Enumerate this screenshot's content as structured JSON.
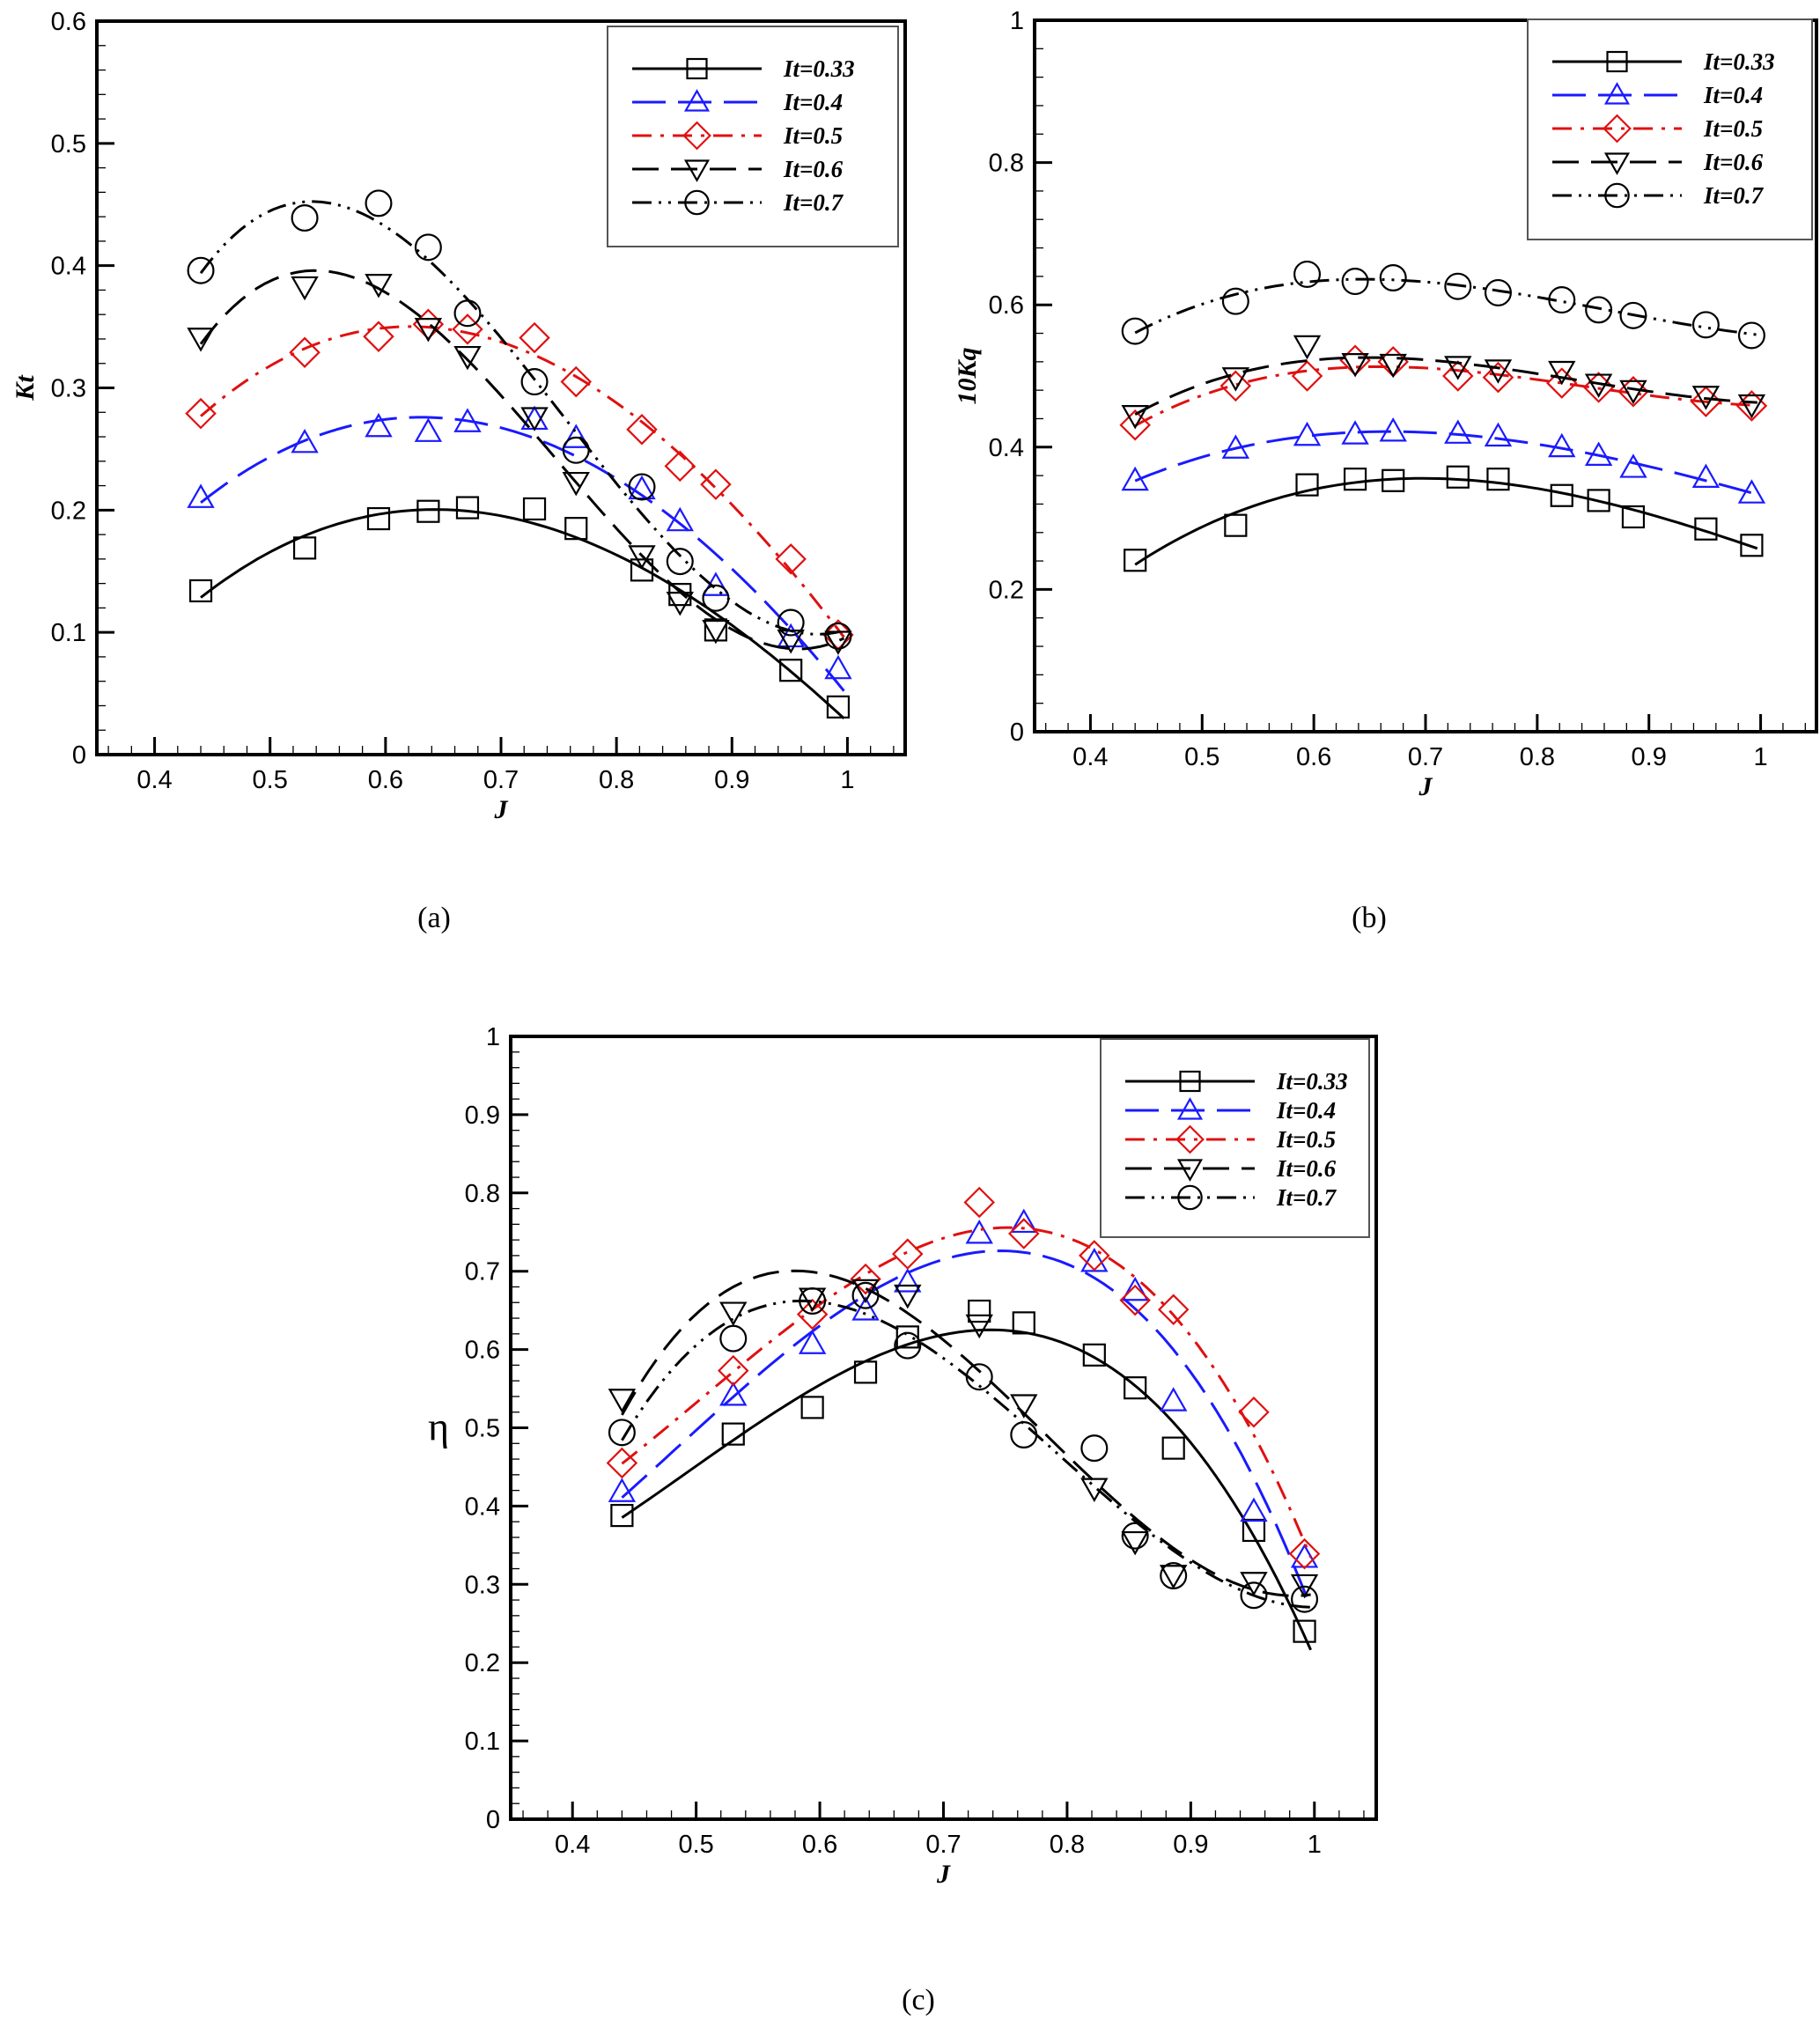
{
  "figure": {
    "captions": [
      "(a)",
      "(b)",
      "(c)"
    ]
  },
  "chart_data": [
    {
      "id": "a",
      "type": "line",
      "title": "",
      "caption": "(a)",
      "xlabel": "J",
      "ylabel": "Kt",
      "xlim": [
        0.35,
        1.05
      ],
      "ylim": [
        0,
        0.6
      ],
      "xticks": [
        0.4,
        0.5,
        0.6,
        0.7,
        0.8,
        0.9,
        1
      ],
      "xtick_labels": [
        "0.4",
        "0.5",
        "0.6",
        "0.7",
        "0.8",
        "0.9",
        "1"
      ],
      "yticks": [
        0,
        0.1,
        0.2,
        0.3,
        0.4,
        0.5,
        0.6
      ],
      "ytick_labels": [
        "0",
        "0.1",
        "0.2",
        "0.3",
        "0.4",
        "0.5",
        "0.6"
      ],
      "grid": false,
      "legend_position": "top-right",
      "x": [
        0.44,
        0.53,
        0.594,
        0.637,
        0.671,
        0.729,
        0.765,
        0.822,
        0.855,
        0.886,
        0.951,
        0.992
      ],
      "series": [
        {
          "name": "It=0.33",
          "color": "#000000",
          "marker": "square",
          "dash": "solid",
          "values": [
            0.134,
            0.169,
            0.193,
            0.199,
            0.202,
            0.201,
            0.185,
            0.151,
            0.131,
            0.102,
            0.069,
            0.039
          ]
        },
        {
          "name": "It=0.4",
          "color": "#1a1aff",
          "marker": "triangle-up",
          "dash": "long-dash",
          "values": [
            0.21,
            0.255,
            0.268,
            0.264,
            0.272,
            0.274,
            0.259,
            0.217,
            0.191,
            0.138,
            0.096,
            0.07
          ]
        },
        {
          "name": "It=0.5",
          "color": "#e01010",
          "marker": "diamond",
          "dash": "dash-dot",
          "values": [
            0.279,
            0.329,
            0.342,
            0.352,
            0.348,
            0.341,
            0.305,
            0.266,
            0.236,
            0.221,
            0.16,
            0.098
          ]
        },
        {
          "name": "It=0.6",
          "color": "#000000",
          "marker": "triangle-down",
          "dash": "dash",
          "values": [
            0.341,
            0.383,
            0.385,
            0.349,
            0.326,
            0.276,
            0.223,
            0.163,
            0.125,
            0.102,
            0.094,
            0.093
          ]
        },
        {
          "name": "It=0.7",
          "color": "#000000",
          "marker": "circle",
          "dash": "dash-dot-dot",
          "values": [
            0.396,
            0.439,
            0.451,
            0.415,
            0.361,
            0.305,
            0.249,
            0.219,
            0.158,
            0.128,
            0.108,
            0.097
          ]
        }
      ]
    },
    {
      "id": "b",
      "type": "line",
      "title": "",
      "caption": "(b)",
      "xlabel": "J",
      "ylabel": "10Kq",
      "xlim": [
        0.35,
        1.05
      ],
      "ylim": [
        0,
        1
      ],
      "xticks": [
        0.4,
        0.5,
        0.6,
        0.7,
        0.8,
        0.9,
        1
      ],
      "xtick_labels": [
        "0.4",
        "0.5",
        "0.6",
        "0.7",
        "0.8",
        "0.9",
        "1"
      ],
      "yticks": [
        0,
        0.2,
        0.4,
        0.6,
        0.8,
        1
      ],
      "ytick_labels": [
        "0",
        "0.2",
        "0.4",
        "0.6",
        "0.8",
        "1"
      ],
      "grid": false,
      "legend_position": "top-right",
      "x": [
        0.44,
        0.53,
        0.594,
        0.637,
        0.671,
        0.729,
        0.765,
        0.822,
        0.855,
        0.886,
        0.951,
        0.992
      ],
      "series": [
        {
          "name": "It=0.33",
          "color": "#000000",
          "marker": "square",
          "dash": "solid",
          "values": [
            0.241,
            0.29,
            0.347,
            0.355,
            0.353,
            0.358,
            0.355,
            0.332,
            0.325,
            0.302,
            0.285,
            0.262
          ]
        },
        {
          "name": "It=0.4",
          "color": "#1a1aff",
          "marker": "triangle-up",
          "dash": "long-dash",
          "values": [
            0.353,
            0.398,
            0.416,
            0.418,
            0.422,
            0.419,
            0.415,
            0.4,
            0.388,
            0.371,
            0.357,
            0.335
          ]
        },
        {
          "name": "It=0.5",
          "color": "#e01010",
          "marker": "diamond",
          "dash": "dash-dot",
          "values": [
            0.431,
            0.486,
            0.5,
            0.522,
            0.52,
            0.5,
            0.498,
            0.49,
            0.484,
            0.478,
            0.464,
            0.458
          ]
        },
        {
          "name": "It=0.6",
          "color": "#000000",
          "marker": "triangle-down",
          "dash": "dash",
          "values": [
            0.445,
            0.498,
            0.543,
            0.518,
            0.517,
            0.514,
            0.509,
            0.507,
            0.489,
            0.48,
            0.472,
            0.46
          ]
        },
        {
          "name": "It=0.7",
          "color": "#000000",
          "marker": "circle",
          "dash": "dash-dot-dot",
          "values": [
            0.563,
            0.605,
            0.643,
            0.633,
            0.638,
            0.626,
            0.617,
            0.607,
            0.593,
            0.585,
            0.572,
            0.557
          ]
        }
      ]
    },
    {
      "id": "c",
      "type": "line",
      "title": "",
      "caption": "(c)",
      "xlabel": "J",
      "ylabel": "η",
      "xlim": [
        0.35,
        1.05
      ],
      "ylim": [
        0,
        1
      ],
      "xticks": [
        0.4,
        0.5,
        0.6,
        0.7,
        0.8,
        0.9,
        1
      ],
      "xtick_labels": [
        "0.4",
        "0.5",
        "0.6",
        "0.7",
        "0.8",
        "0.9",
        "1"
      ],
      "yticks": [
        0,
        0.1,
        0.2,
        0.3,
        0.4,
        0.5,
        0.6,
        0.7,
        0.8,
        0.9,
        1
      ],
      "ytick_labels": [
        "0",
        "0.1",
        "0.2",
        "0.3",
        "0.4",
        "0.5",
        "0.6",
        "0.7",
        "0.8",
        "0.9",
        "1"
      ],
      "grid": false,
      "legend_position": "top-right",
      "x": [
        0.44,
        0.53,
        0.594,
        0.637,
        0.671,
        0.729,
        0.765,
        0.822,
        0.855,
        0.886,
        0.951,
        0.992
      ],
      "series": [
        {
          "name": "It=0.33",
          "color": "#000000",
          "marker": "square",
          "dash": "solid",
          "values": [
            0.388,
            0.492,
            0.526,
            0.571,
            0.616,
            0.649,
            0.634,
            0.593,
            0.551,
            0.474,
            0.369,
            0.24
          ]
        },
        {
          "name": "It=0.4",
          "color": "#1a1aff",
          "marker": "triangle-up",
          "dash": "long-dash",
          "values": [
            0.418,
            0.541,
            0.607,
            0.65,
            0.686,
            0.748,
            0.762,
            0.712,
            0.675,
            0.534,
            0.393,
            0.334
          ]
        },
        {
          "name": "It=0.5",
          "color": "#e01010",
          "marker": "diamond",
          "dash": "dash-dot",
          "values": [
            0.455,
            0.573,
            0.645,
            0.69,
            0.722,
            0.788,
            0.748,
            0.72,
            0.663,
            0.651,
            0.52,
            0.339
          ]
        },
        {
          "name": "It=0.6",
          "color": "#000000",
          "marker": "triangle-down",
          "dash": "dash",
          "values": [
            0.537,
            0.648,
            0.666,
            0.677,
            0.67,
            0.632,
            0.53,
            0.423,
            0.355,
            0.312,
            0.303,
            0.3
          ]
        },
        {
          "name": "It=0.7",
          "color": "#000000",
          "marker": "circle",
          "dash": "dash-dot-dot",
          "values": [
            0.494,
            0.614,
            0.662,
            0.669,
            0.605,
            0.565,
            0.491,
            0.474,
            0.362,
            0.311,
            0.286,
            0.281
          ]
        }
      ]
    }
  ]
}
